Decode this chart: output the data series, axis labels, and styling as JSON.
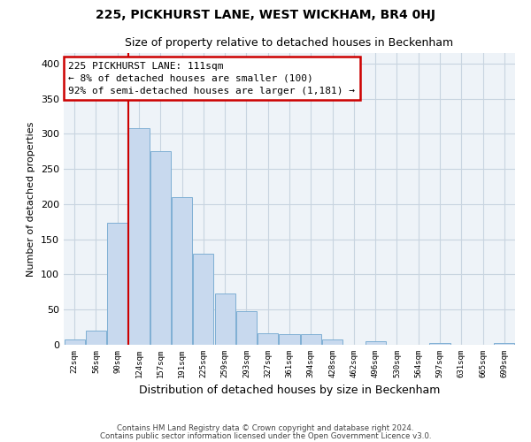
{
  "title": "225, PICKHURST LANE, WEST WICKHAM, BR4 0HJ",
  "subtitle": "Size of property relative to detached houses in Beckenham",
  "xlabel": "Distribution of detached houses by size in Beckenham",
  "ylabel": "Number of detached properties",
  "bar_labels": [
    "22sqm",
    "56sqm",
    "90sqm",
    "124sqm",
    "157sqm",
    "191sqm",
    "225sqm",
    "259sqm",
    "293sqm",
    "327sqm",
    "361sqm",
    "394sqm",
    "428sqm",
    "462sqm",
    "496sqm",
    "530sqm",
    "564sqm",
    "597sqm",
    "631sqm",
    "665sqm",
    "699sqm"
  ],
  "bar_values": [
    8,
    20,
    173,
    308,
    275,
    210,
    129,
    73,
    48,
    16,
    15,
    15,
    8,
    0,
    5,
    0,
    0,
    2,
    0,
    0,
    3
  ],
  "bar_color": "#c8d9ee",
  "bar_edge_color": "#7fafd4",
  "annotation_text": "225 PICKHURST LANE: 111sqm\n← 8% of detached houses are smaller (100)\n92% of semi-detached houses are larger (1,181) →",
  "annotation_box_color": "#ffffff",
  "annotation_box_edge": "#cc0000",
  "vline_color": "#cc0000",
  "ylim": [
    0,
    415
  ],
  "yticks": [
    0,
    50,
    100,
    150,
    200,
    250,
    300,
    350,
    400
  ],
  "footer_line1": "Contains HM Land Registry data © Crown copyright and database right 2024.",
  "footer_line2": "Contains public sector information licensed under the Open Government Licence v3.0.",
  "bg_color": "#ffffff",
  "grid_color": "#c8d4e0",
  "title_fontsize": 10,
  "subtitle_fontsize": 9
}
